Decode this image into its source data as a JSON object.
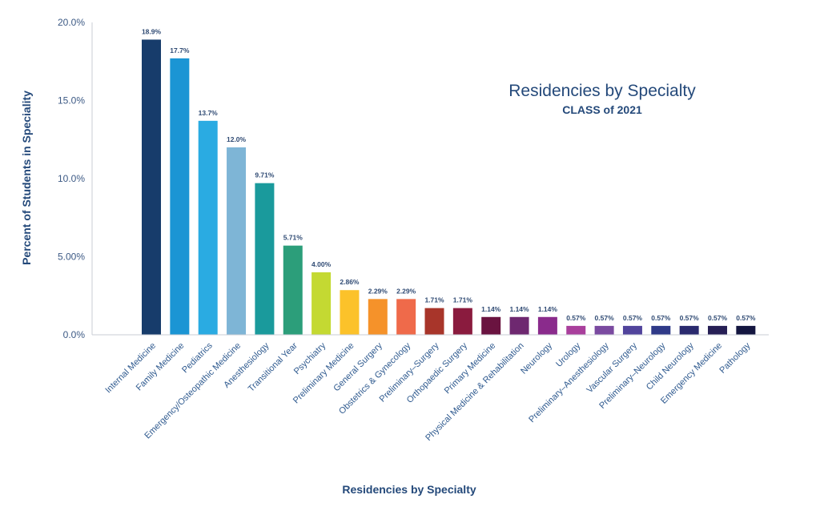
{
  "chart_data": {
    "type": "bar",
    "title": "Residencies by Specialty",
    "subtitle": "CLASS of 2021",
    "xlabel": "Residencies by Specialty",
    "ylabel": "Percent of Students in Speciality",
    "ylim": [
      0,
      20
    ],
    "yticks": [
      {
        "value": 0,
        "label": "0.0%"
      },
      {
        "value": 5,
        "label": "5.00%"
      },
      {
        "value": 10,
        "label": "10.0%"
      },
      {
        "value": 15,
        "label": "15.0%"
      },
      {
        "value": 20,
        "label": "20.0%"
      }
    ],
    "grid": false,
    "legend": "none",
    "categories": [
      "Internal Medicine",
      "Family Medicine",
      "Pediatrics",
      "Emergency/Osteopathic Medicine",
      "Anesthesiology",
      "Transitional Year",
      "Psychiatry",
      "Preliminary Medicine",
      "General Surgery",
      "Obstetrics & Gynecology",
      "Preliminary–Surgery",
      "Orthopaedic Surgery",
      "Primary Medicine",
      "Physical Medicine & Rehabilitation",
      "Neurology",
      "Urology",
      "Preliminary–Anesthesiology",
      "Vascular Surgery",
      "Preliminary–Neurology",
      "Child Neurology",
      "Emergency Medicine",
      "Pathology"
    ],
    "values": [
      18.9,
      17.7,
      13.7,
      12.0,
      9.71,
      5.71,
      4.0,
      2.86,
      2.29,
      2.29,
      1.71,
      1.71,
      1.14,
      1.14,
      1.14,
      0.57,
      0.57,
      0.57,
      0.57,
      0.57,
      0.57,
      0.57
    ],
    "value_labels": [
      "18.9%",
      "17.7%",
      "13.7%",
      "12.0%",
      "9.71%",
      "5.71%",
      "4.00%",
      "2.86%",
      "2.29%",
      "2.29%",
      "1.71%",
      "1.71%",
      "1.14%",
      "1.14%",
      "1.14%",
      "0.57%",
      "0.57%",
      "0.57%",
      "0.57%",
      "0.57%",
      "0.57%",
      "0.57%"
    ],
    "colors": [
      "#173c6b",
      "#1b95d4",
      "#2aabe2",
      "#7eb5d6",
      "#1a9a9c",
      "#2c9e7a",
      "#c4d932",
      "#fcc22a",
      "#f5922a",
      "#ef6a4a",
      "#a8352a",
      "#8a1b3e",
      "#6a1340",
      "#6e2870",
      "#8a2b8c",
      "#a93f9c",
      "#7a4aa0",
      "#51449c",
      "#2f3a88",
      "#2a2a6e",
      "#261f55",
      "#141640"
    ]
  }
}
